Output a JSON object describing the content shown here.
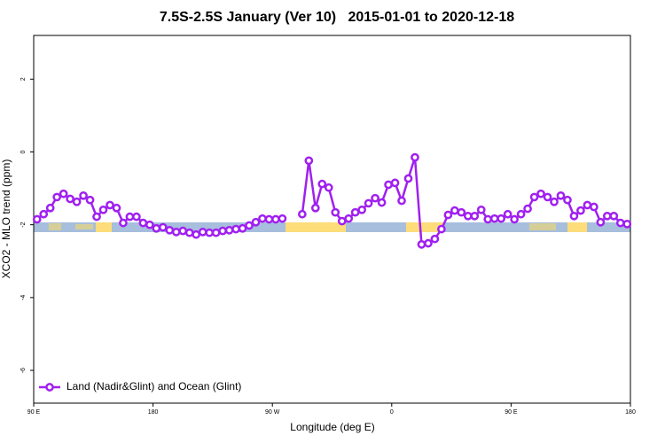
{
  "chart_data": {
    "type": "line",
    "title": "7.5S-2.5S January (Ver 10)   2015-01-01 to 2020-12-18",
    "x_label": "Longitude (deg E)",
    "y_label": "XCO2 - MLO trend (ppm)",
    "x": [
      92.5,
      97.5,
      102.5,
      107.5,
      112.5,
      117.5,
      122.5,
      127.5,
      132.5,
      137.5,
      142.5,
      147.5,
      152.5,
      157.5,
      162.5,
      167.5,
      172.5,
      177.5,
      182.5,
      187.5,
      192.5,
      197.5,
      202.5,
      207.5,
      212.5,
      217.5,
      222.5,
      227.5,
      232.5,
      237.5,
      242.5,
      247.5,
      252.5,
      257.5,
      262.5,
      267.5,
      272.5,
      277.5,
      282.5,
      287.5,
      292.5,
      297.5,
      302.5,
      307.5,
      312.5,
      317.5,
      322.5,
      327.5,
      332.5,
      337.5,
      342.5,
      347.5,
      352.5,
      357.5,
      362.5,
      367.5,
      372.5,
      377.5,
      382.5,
      387.5,
      392.5,
      397.5,
      402.5,
      407.5,
      412.5,
      417.5,
      422.5,
      427.5,
      432.5,
      437.5,
      442.5,
      447.5,
      452.5,
      457.5,
      462.5,
      467.5,
      472.5,
      477.5,
      482.5,
      487.5,
      492.5,
      497.5,
      502.5,
      507.5,
      512.5,
      517.5,
      522.5,
      527.5,
      532.5,
      537.5
    ],
    "series": [
      {
        "name": "Land (Nadir&Glint) and Ocean (Glint)",
        "color": "#a020f0",
        "values": [
          -1.85,
          -1.71,
          -1.54,
          -1.24,
          -1.15,
          -1.29,
          -1.37,
          -1.2,
          -1.32,
          -1.78,
          -1.59,
          -1.46,
          -1.54,
          -1.95,
          -1.78,
          -1.78,
          -1.95,
          -2.0,
          -2.1,
          -2.07,
          -2.15,
          -2.2,
          -2.17,
          -2.22,
          -2.27,
          -2.2,
          -2.22,
          -2.22,
          -2.17,
          -2.15,
          -2.12,
          -2.1,
          -2.02,
          -1.93,
          -1.83,
          -1.85,
          -1.85,
          -1.83,
          null,
          null,
          -1.71,
          -0.24,
          -1.54,
          -0.88,
          -0.98,
          -1.66,
          -1.9,
          -1.83,
          -1.66,
          -1.59,
          -1.41,
          -1.27,
          -1.39,
          -0.9,
          -0.85,
          -1.34,
          -0.73,
          -0.15,
          -2.54,
          -2.51,
          -2.39,
          -2.12,
          -1.73,
          -1.61,
          -1.66,
          -1.76,
          -1.76,
          -1.59,
          -1.85,
          -1.83,
          -1.83,
          -1.71,
          -1.85,
          -1.71,
          -1.56,
          -1.24,
          -1.15,
          -1.24,
          -1.37,
          -1.2,
          -1.32,
          -1.76,
          -1.61,
          -1.46,
          -1.51,
          -1.93,
          -1.76,
          -1.76,
          -1.95,
          -1.98
        ]
      }
    ],
    "xlim": [
      90,
      540
    ],
    "xticks": [
      {
        "value": 90,
        "label": "90 E"
      },
      180,
      {
        "value": 270,
        "label": "90 W"
      },
      {
        "value": 360,
        "label": "0"
      },
      {
        "value": 450,
        "label": "90 E"
      },
      {
        "value": 540,
        "label": "180"
      }
    ],
    "ylim": [
      -6.9,
      3.2
    ],
    "yticks": [
      -6,
      -4,
      -2,
      0,
      2
    ],
    "legend": "bottom-left"
  }
}
